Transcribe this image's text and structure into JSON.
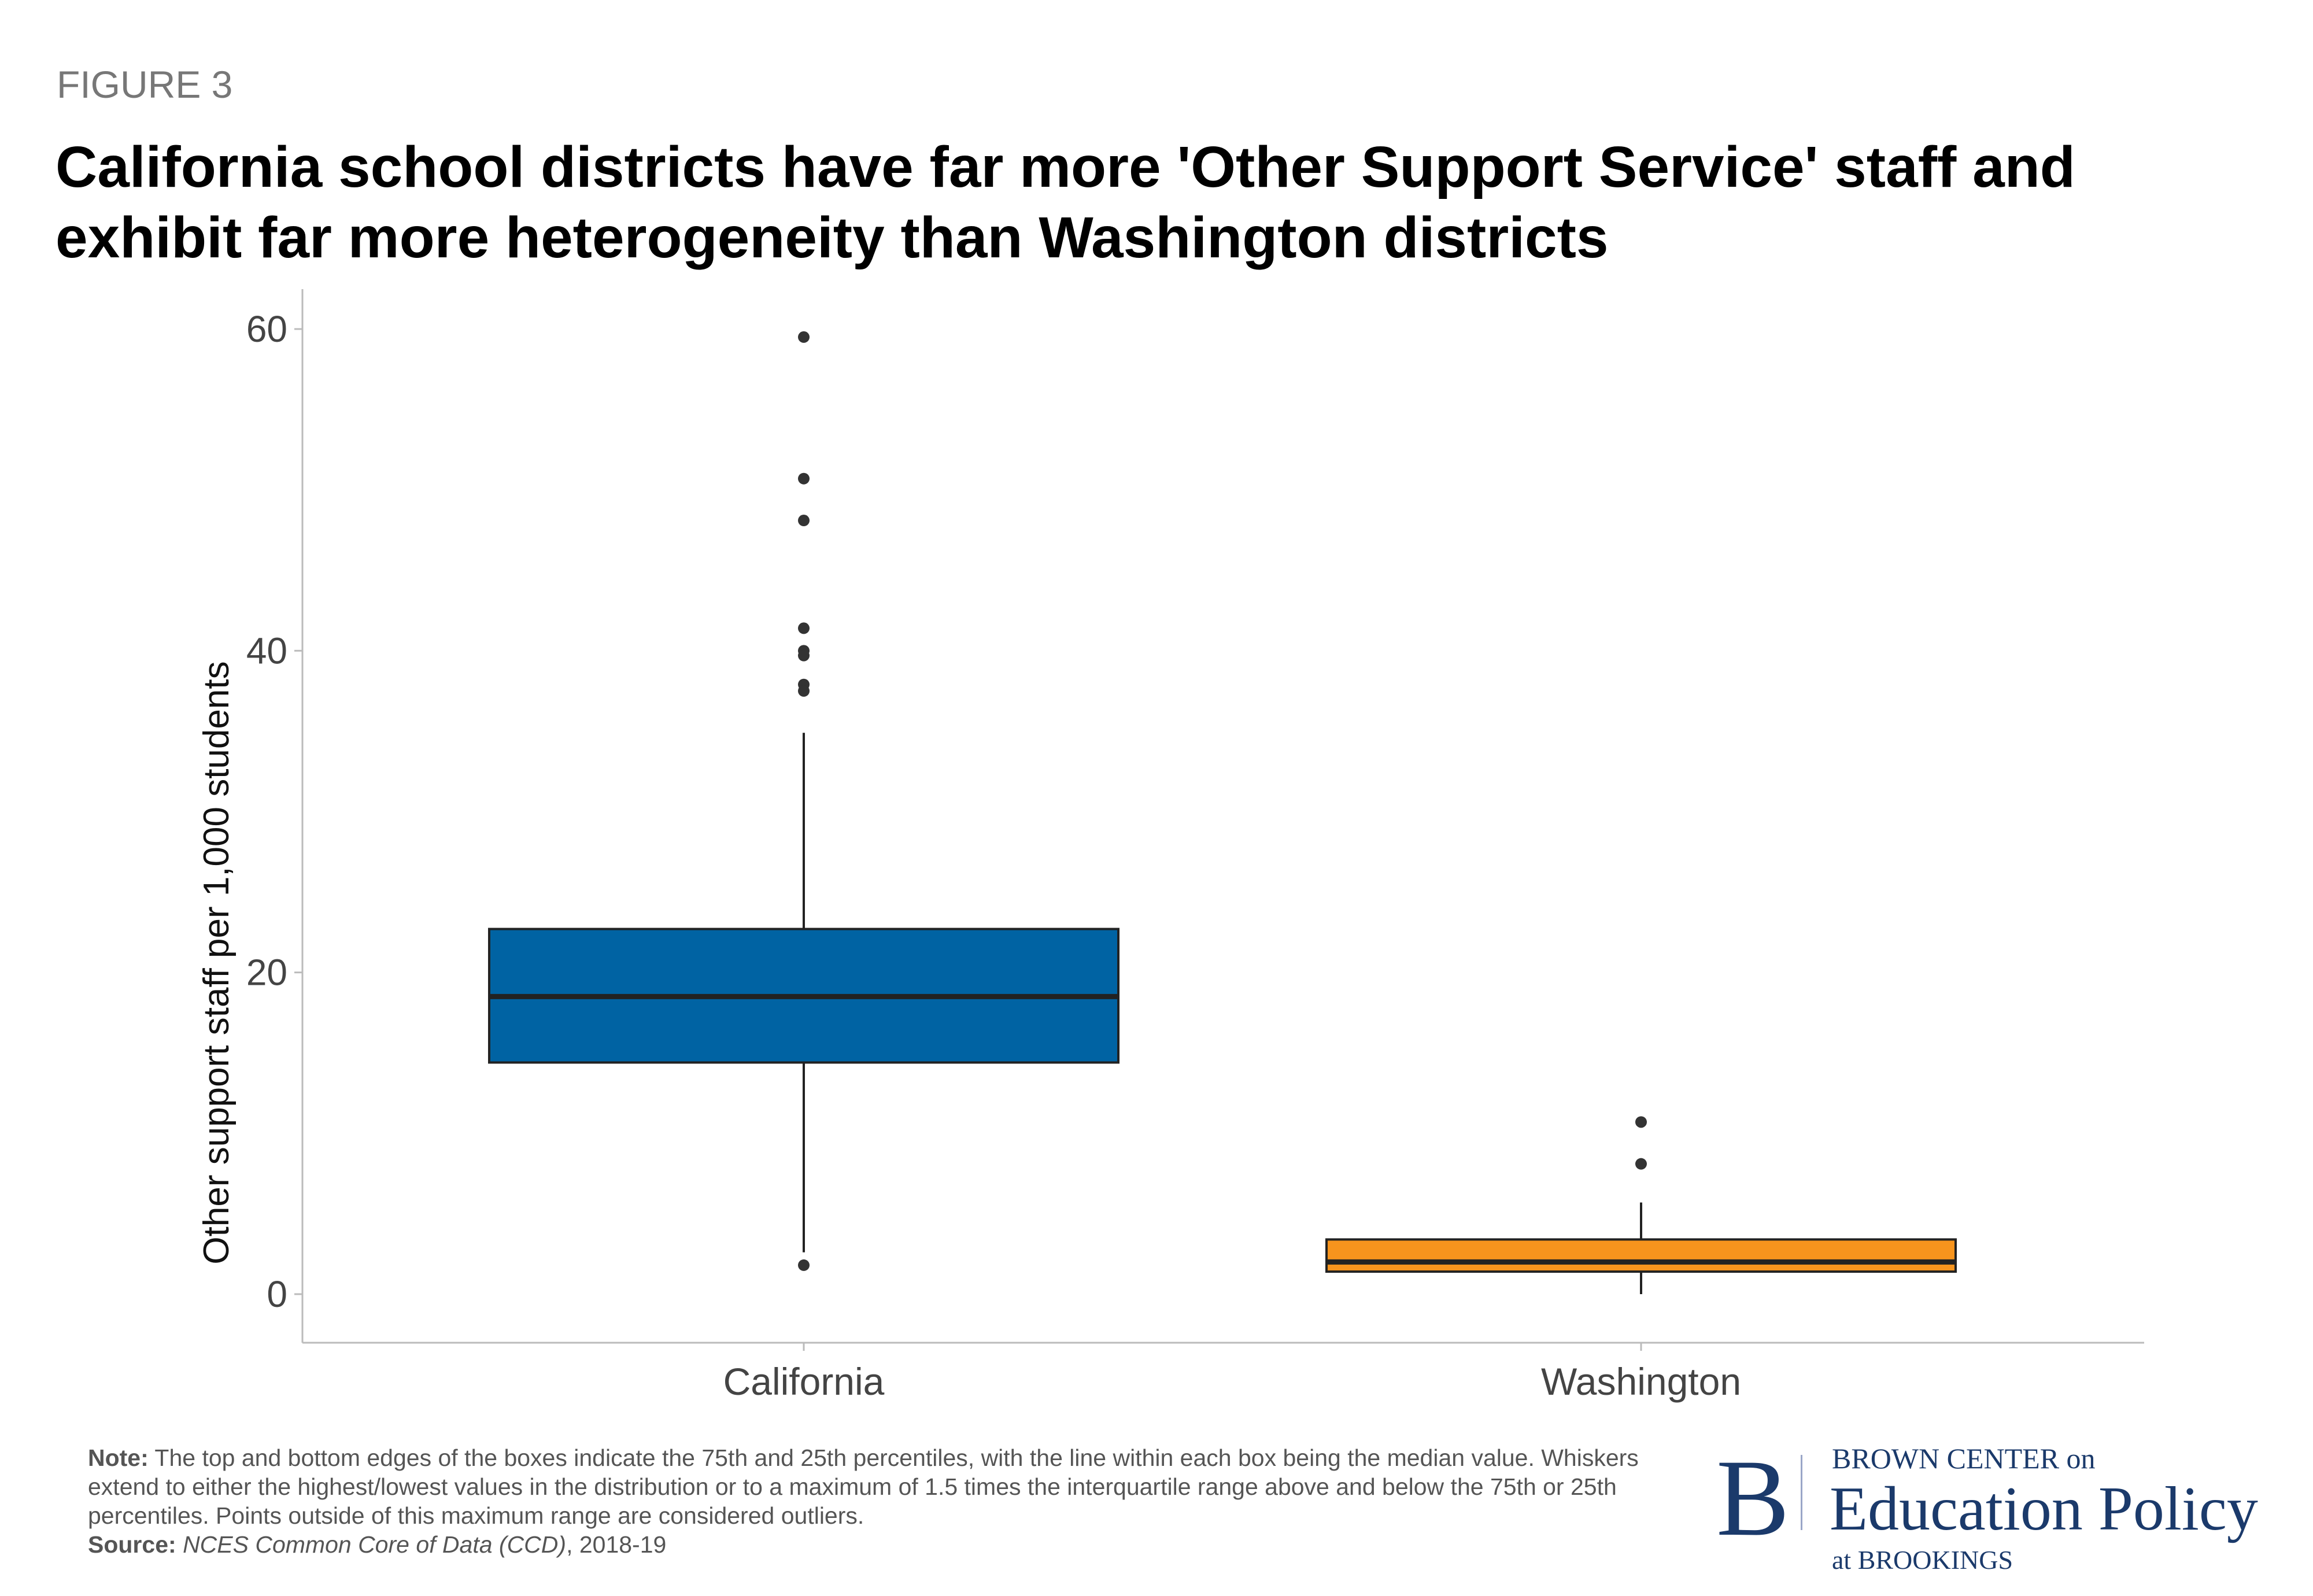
{
  "figure_label": "FIGURE 3",
  "title_line1": "California school districts have far more 'Other Support Service' staff and",
  "title_line2": "exhibit far more heterogeneity than Washington districts",
  "chart_data": {
    "type": "boxplot",
    "ylabel": "Other support staff per 1,000 students",
    "xlabel": "",
    "ylim": [
      -3,
      62.5
    ],
    "yticks": [
      0,
      20,
      40,
      60
    ],
    "grid": false,
    "categories": [
      "California",
      "Washington"
    ],
    "series": [
      {
        "category": "California",
        "color": "#0063a3",
        "q1": 14.4,
        "median": 18.5,
        "q3": 22.7,
        "whisker_low": 2.6,
        "whisker_high": 34.9,
        "outliers": [
          59.5,
          50.7,
          48.1,
          41.4,
          40.0,
          39.7,
          37.9,
          37.5,
          1.8
        ]
      },
      {
        "category": "Washington",
        "color": "#f7941d",
        "q1": 1.4,
        "median": 2.0,
        "q3": 3.4,
        "whisker_low": 0.0,
        "whisker_high": 5.7,
        "outliers": [
          10.7,
          8.1
        ]
      }
    ]
  },
  "notes": {
    "note_label": "Note:",
    "note_text": " The top and bottom edges of the boxes indicate the 75th and 25th percentiles, with the line within each box being the median value. Whiskers extend to either the highest/lowest values in the distribution or to a maximum of 1.5 times the interquartile range above and below the 75th or 25th percentiles. Points outside of this maximum range are considered outliers.",
    "source_label": "Source:",
    "source_name": "NCES Common Core of Data (CCD)",
    "source_year": ", 2018-19"
  },
  "logo": {
    "letter": "B",
    "line1": "BROWN CENTER on",
    "line2": "Education Policy",
    "line3": "at BROOKINGS"
  }
}
